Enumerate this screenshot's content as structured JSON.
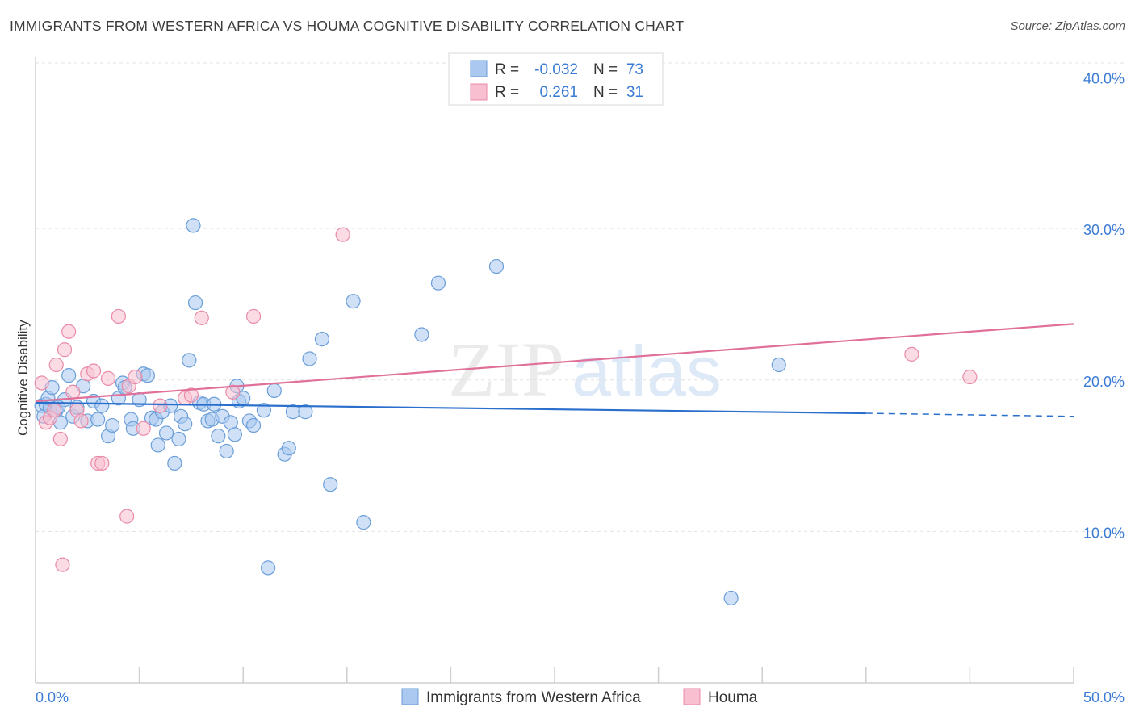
{
  "title": "IMMIGRANTS FROM WESTERN AFRICA VS HOUMA COGNITIVE DISABILITY CORRELATION CHART",
  "source": "Source: ZipAtlas.com",
  "watermark": "ZIPatlas",
  "colors": {
    "blue_fill": "#aac8f0",
    "blue_stroke": "#6a9ed8",
    "blue_line": "#2b6fcc",
    "pink_fill": "#f7bfd0",
    "pink_stroke": "#e98aa8",
    "pink_line": "#e0709a",
    "grid": "#e2e2e2",
    "axis_text": "#3a7bd5"
  },
  "legend": {
    "rows": [
      {
        "r_label": "R =",
        "r_value": "-0.032",
        "n_label": "N =",
        "n_value": "73"
      },
      {
        "r_label": "R =",
        "r_value": "0.261",
        "n_label": "N =",
        "n_value": "31"
      }
    ]
  },
  "chart_data": {
    "type": "scatter",
    "ylabel": "Cognitive Disability",
    "xlim": [
      0,
      50
    ],
    "ylim": [
      0,
      42
    ],
    "x_tick_labels": [
      "0.0%",
      "50.0%"
    ],
    "y_ticks": [
      10,
      20,
      30,
      40
    ],
    "y_tick_labels": [
      "10.0%",
      "20.0%",
      "30.0%",
      "40.0%"
    ],
    "series": [
      {
        "name": "Immigrants from Western Africa",
        "color": "blue",
        "trend": {
          "x0": 0,
          "y0": 18.5,
          "x1": 40,
          "y1": 17.8,
          "dash_to": 50,
          "dash_y": 17.6
        },
        "points": [
          [
            0.3,
            18.3
          ],
          [
            0.4,
            17.6
          ],
          [
            0.5,
            18.4
          ],
          [
            0.6,
            18.8
          ],
          [
            0.7,
            18.2
          ],
          [
            0.8,
            19.5
          ],
          [
            1.0,
            18.0
          ],
          [
            1.2,
            17.2
          ],
          [
            1.4,
            18.7
          ],
          [
            1.6,
            20.3
          ],
          [
            1.8,
            17.6
          ],
          [
            2.0,
            18.2
          ],
          [
            2.3,
            19.6
          ],
          [
            2.5,
            17.3
          ],
          [
            2.8,
            18.6
          ],
          [
            3.2,
            18.3
          ],
          [
            3.5,
            16.3
          ],
          [
            3.7,
            17.0
          ],
          [
            4.0,
            18.8
          ],
          [
            4.2,
            19.8
          ],
          [
            4.3,
            19.5
          ],
          [
            4.6,
            17.4
          ],
          [
            4.7,
            16.8
          ],
          [
            5.0,
            18.7
          ],
          [
            5.2,
            20.4
          ],
          [
            5.4,
            20.3
          ],
          [
            5.6,
            17.5
          ],
          [
            5.8,
            17.4
          ],
          [
            5.9,
            15.7
          ],
          [
            6.1,
            17.9
          ],
          [
            6.3,
            16.5
          ],
          [
            6.5,
            18.3
          ],
          [
            6.7,
            14.5
          ],
          [
            6.9,
            16.1
          ],
          [
            7.0,
            17.6
          ],
          [
            7.2,
            17.1
          ],
          [
            7.4,
            21.3
          ],
          [
            7.6,
            30.2
          ],
          [
            7.7,
            25.1
          ],
          [
            7.9,
            18.5
          ],
          [
            8.1,
            18.4
          ],
          [
            8.3,
            17.3
          ],
          [
            8.5,
            17.4
          ],
          [
            8.6,
            18.4
          ],
          [
            8.8,
            16.3
          ],
          [
            9.0,
            17.6
          ],
          [
            9.2,
            15.3
          ],
          [
            9.4,
            17.2
          ],
          [
            9.6,
            16.4
          ],
          [
            9.7,
            19.6
          ],
          [
            9.8,
            18.6
          ],
          [
            10.0,
            18.8
          ],
          [
            10.3,
            17.3
          ],
          [
            10.5,
            17.0
          ],
          [
            11.0,
            18.0
          ],
          [
            11.2,
            7.6
          ],
          [
            11.5,
            19.3
          ],
          [
            12.0,
            15.1
          ],
          [
            12.2,
            15.5
          ],
          [
            12.4,
            17.9
          ],
          [
            13.0,
            17.9
          ],
          [
            13.2,
            21.4
          ],
          [
            13.8,
            22.7
          ],
          [
            14.2,
            13.1
          ],
          [
            15.3,
            25.2
          ],
          [
            15.8,
            10.6
          ],
          [
            18.6,
            23.0
          ],
          [
            19.4,
            26.4
          ],
          [
            22.2,
            27.5
          ],
          [
            33.5,
            5.6
          ],
          [
            35.8,
            21.0
          ],
          [
            1.1,
            18.2
          ],
          [
            3.0,
            17.4
          ]
        ]
      },
      {
        "name": "Houma",
        "color": "pink",
        "trend": {
          "x0": 0,
          "y0": 18.6,
          "x1": 50,
          "y1": 23.7
        },
        "points": [
          [
            0.3,
            19.8
          ],
          [
            0.5,
            17.2
          ],
          [
            0.7,
            17.5
          ],
          [
            1.0,
            21.0
          ],
          [
            1.2,
            16.1
          ],
          [
            1.4,
            22.0
          ],
          [
            1.6,
            23.2
          ],
          [
            1.8,
            19.2
          ],
          [
            2.0,
            18.0
          ],
          [
            2.2,
            17.3
          ],
          [
            2.5,
            20.4
          ],
          [
            3.0,
            14.5
          ],
          [
            3.2,
            14.5
          ],
          [
            3.5,
            20.1
          ],
          [
            4.0,
            24.2
          ],
          [
            4.5,
            19.6
          ],
          [
            4.8,
            20.2
          ],
          [
            5.2,
            16.8
          ],
          [
            7.2,
            18.8
          ],
          [
            7.5,
            19.0
          ],
          [
            8.0,
            24.1
          ],
          [
            9.5,
            19.2
          ],
          [
            10.5,
            24.2
          ],
          [
            14.8,
            29.6
          ],
          [
            42.2,
            21.7
          ],
          [
            45.0,
            20.2
          ],
          [
            1.3,
            7.8
          ],
          [
            4.4,
            11.0
          ],
          [
            2.8,
            20.6
          ],
          [
            0.9,
            18.0
          ],
          [
            6.0,
            18.3
          ]
        ]
      }
    ]
  }
}
